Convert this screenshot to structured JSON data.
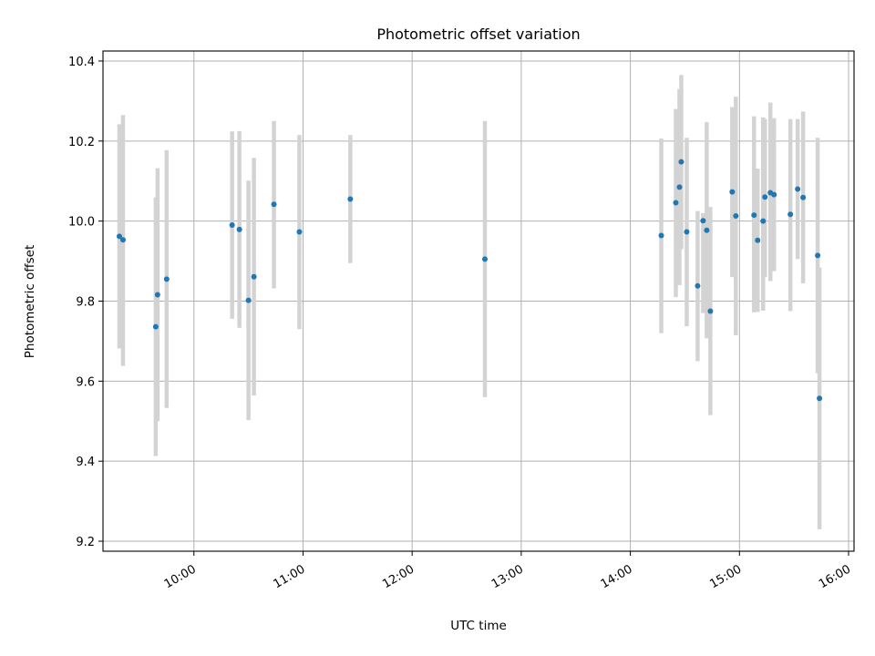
{
  "chart_data": {
    "type": "scatter",
    "title": "Photometric offset variation",
    "xlabel": "UTC time",
    "ylabel": "Photometric offset",
    "x_ticks": [
      "10:00",
      "11:00",
      "12:00",
      "13:00",
      "14:00",
      "15:00",
      "16:00"
    ],
    "y_ticks": [
      "9.2",
      "9.4",
      "9.6",
      "9.8",
      "10.0",
      "10.2",
      "10.4"
    ],
    "xlim": [
      "09:10",
      "16:03"
    ],
    "ylim": [
      9.175,
      10.425
    ],
    "grid": true,
    "colors": {
      "point": "#1f77b4",
      "errorbar": "#d3d3d3",
      "grid": "#b0b0b0"
    },
    "points": [
      {
        "x": "09:19",
        "y": 9.962,
        "ylo": 9.682,
        "yhi": 10.242
      },
      {
        "x": "09:21",
        "y": 9.953,
        "ylo": 9.638,
        "yhi": 10.265
      },
      {
        "x": "09:39",
        "y": 9.736,
        "ylo": 9.413,
        "yhi": 10.059
      },
      {
        "x": "09:40",
        "y": 9.816,
        "ylo": 9.5,
        "yhi": 10.132
      },
      {
        "x": "09:45",
        "y": 9.855,
        "ylo": 9.533,
        "yhi": 10.177
      },
      {
        "x": "10:21",
        "y": 9.99,
        "ylo": 9.756,
        "yhi": 10.224
      },
      {
        "x": "10:25",
        "y": 9.979,
        "ylo": 9.733,
        "yhi": 10.225
      },
      {
        "x": "10:30",
        "y": 9.802,
        "ylo": 9.503,
        "yhi": 10.101
      },
      {
        "x": "10:33",
        "y": 9.861,
        "ylo": 9.564,
        "yhi": 10.158
      },
      {
        "x": "10:44",
        "y": 10.042,
        "ylo": 9.832,
        "yhi": 10.25
      },
      {
        "x": "10:58",
        "y": 9.973,
        "ylo": 9.73,
        "yhi": 10.215
      },
      {
        "x": "11:26",
        "y": 10.055,
        "ylo": 9.895,
        "yhi": 10.215
      },
      {
        "x": "12:40",
        "y": 9.905,
        "ylo": 9.56,
        "yhi": 10.25
      },
      {
        "x": "14:17",
        "y": 9.964,
        "ylo": 9.72,
        "yhi": 10.206
      },
      {
        "x": "14:25",
        "y": 10.046,
        "ylo": 9.81,
        "yhi": 10.28
      },
      {
        "x": "14:27",
        "y": 10.085,
        "ylo": 9.84,
        "yhi": 10.33
      },
      {
        "x": "14:28",
        "y": 10.148,
        "ylo": 9.93,
        "yhi": 10.365
      },
      {
        "x": "14:31",
        "y": 9.973,
        "ylo": 9.737,
        "yhi": 10.208
      },
      {
        "x": "14:37",
        "y": 9.838,
        "ylo": 9.65,
        "yhi": 10.025
      },
      {
        "x": "14:40",
        "y": 10.001,
        "ylo": 9.77,
        "yhi": 10.02
      },
      {
        "x": "14:42",
        "y": 9.977,
        "ylo": 9.707,
        "yhi": 10.247
      },
      {
        "x": "14:44",
        "y": 9.775,
        "ylo": 9.515,
        "yhi": 10.035
      },
      {
        "x": "14:56",
        "y": 10.073,
        "ylo": 9.86,
        "yhi": 10.285
      },
      {
        "x": "14:58",
        "y": 10.013,
        "ylo": 9.715,
        "yhi": 10.311
      },
      {
        "x": "15:08",
        "y": 10.015,
        "ylo": 9.772,
        "yhi": 10.262
      },
      {
        "x": "15:10",
        "y": 9.952,
        "ylo": 9.773,
        "yhi": 10.131
      },
      {
        "x": "15:13",
        "y": 10.0,
        "ylo": 9.776,
        "yhi": 10.259
      },
      {
        "x": "15:14",
        "y": 10.06,
        "ylo": 9.86,
        "yhi": 10.255
      },
      {
        "x": "15:17",
        "y": 10.071,
        "ylo": 9.85,
        "yhi": 10.296
      },
      {
        "x": "15:19",
        "y": 10.066,
        "ylo": 9.875,
        "yhi": 10.257
      },
      {
        "x": "15:28",
        "y": 10.017,
        "ylo": 9.775,
        "yhi": 10.255
      },
      {
        "x": "15:32",
        "y": 10.08,
        "ylo": 9.905,
        "yhi": 10.255
      },
      {
        "x": "15:35",
        "y": 10.059,
        "ylo": 9.844,
        "yhi": 10.274
      },
      {
        "x": "15:43",
        "y": 9.914,
        "ylo": 9.62,
        "yhi": 10.208
      },
      {
        "x": "15:44",
        "y": 9.557,
        "ylo": 9.23,
        "yhi": 9.884
      }
    ]
  }
}
